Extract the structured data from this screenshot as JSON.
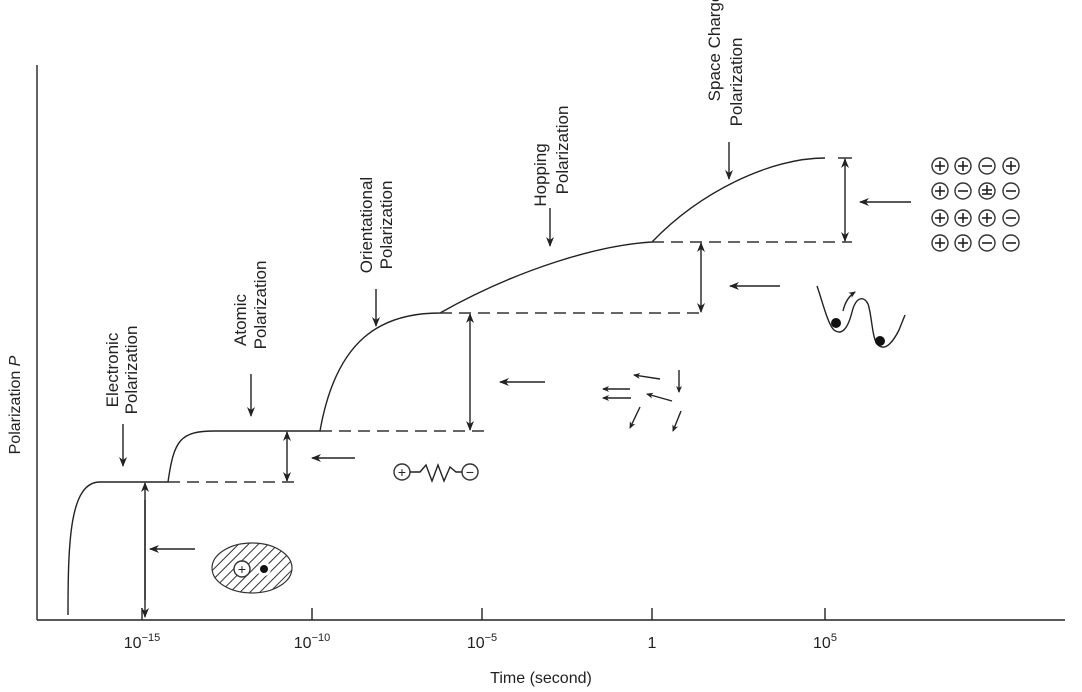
{
  "axes": {
    "xlabel": "Time (second)",
    "ylabel": "Polarization",
    "ylabel_symbol": "P",
    "x_ticks": [
      {
        "base": "10",
        "exp": "−15"
      },
      {
        "base": "10",
        "exp": "−10"
      },
      {
        "base": "10",
        "exp": "−5"
      },
      {
        "base": "1",
        "exp": ""
      },
      {
        "base": "10",
        "exp": "5"
      }
    ]
  },
  "mechanisms": [
    {
      "line1": "Electronic",
      "line2": "Polarization",
      "icon": "electron-cloud"
    },
    {
      "line1": "Atomic",
      "line2": "Polarization",
      "icon": "ion-spring-dipole"
    },
    {
      "line1": "Orientational",
      "line2": "Polarization",
      "icon": "rotating-dipole-arrows"
    },
    {
      "line1": "Hopping",
      "line2": "Polarization",
      "icon": "double-well-potential"
    },
    {
      "line1": "Space Charge",
      "line2": "Polarization",
      "icon": "charge-grid"
    }
  ],
  "symbols": {
    "plus": "+",
    "minus": "−"
  },
  "charge_grid": [
    [
      "+",
      "+",
      "-",
      "+"
    ],
    [
      "+",
      "-",
      "±",
      "-"
    ],
    [
      "+",
      "+",
      "+",
      "-"
    ],
    [
      "+",
      "+",
      "-",
      "-"
    ]
  ]
}
